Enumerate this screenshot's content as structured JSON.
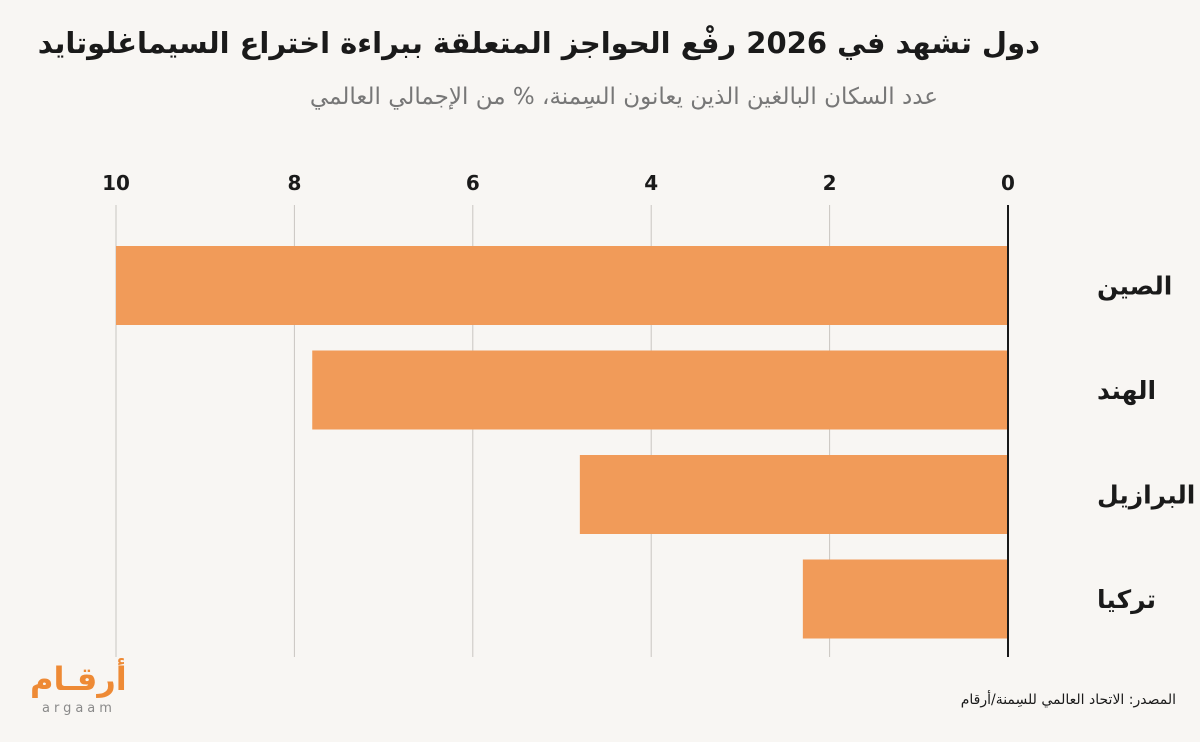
{
  "header": {
    "title": "دول تشهد في 2026 رفْع الحواجز المتعلقة ببراءة اختراع السيماغلوتايد",
    "subtitle": "عدد السكان البالغين الذين يعانون السِمنة، % من الإجمالي العالمي"
  },
  "chart_data": {
    "type": "bar",
    "orientation": "horizontal",
    "title": "دول تشهد في 2026 رفْع الحواجز المتعلقة ببراءة اختراع السيماغلوتايد",
    "subtitle": "عدد السكان البالغين الذين يعانون السِمنة، % من الإجمالي العالمي",
    "categories": [
      "الصين",
      "الهند",
      "البرازيل",
      "تركيا"
    ],
    "values": [
      10.0,
      7.8,
      4.8,
      2.3
    ],
    "xlim": [
      0,
      10
    ],
    "x_ticks": [
      "0",
      "2",
      "4",
      "6",
      "8",
      "10"
    ],
    "x_axis_direction": "right-to-left",
    "x_axis_position": "top",
    "grid": true,
    "legend": "none",
    "bar_color": "#f19b59"
  },
  "footer": {
    "source": "المصدر: الاتحاد العالمي للسِمنة/أرقام",
    "logo_ar": "أرقـام",
    "logo_en": "argaam"
  },
  "colors": {
    "background": "#f8f6f3",
    "bar": "#f19b59",
    "grid": "#c9c5c0",
    "axis": "#1a1a1a",
    "brand": "#ee8a35"
  }
}
